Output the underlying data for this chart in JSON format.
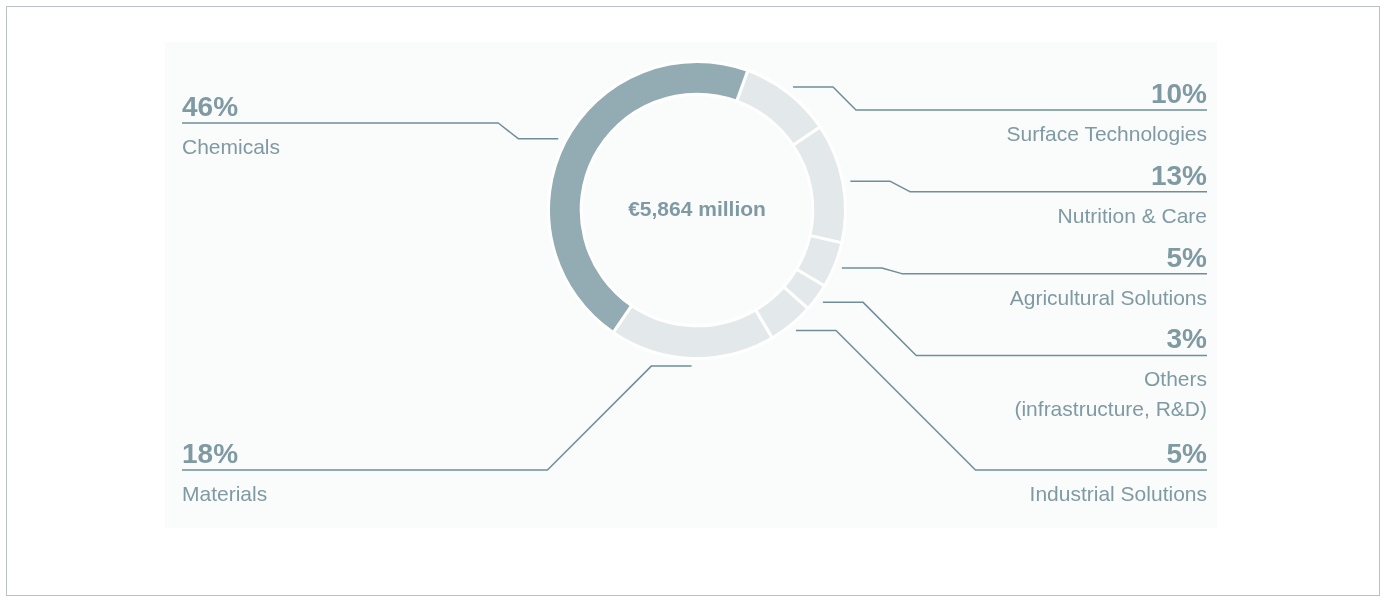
{
  "chart_data": {
    "type": "donut",
    "categories": [
      "Surface Technologies",
      "Nutrition & Care",
      "Agricultural Solutions",
      "Others\n(infrastructure, R&D)",
      "Industrial Solutions",
      "Materials",
      "Chemicals"
    ],
    "values": [
      10,
      13,
      5,
      3,
      5,
      18,
      46
    ],
    "colors": [
      "#e3e8ea",
      "#e3e8ea",
      "#e3e8ea",
      "#e3e8ea",
      "#e3e8ea",
      "#e3e8ea",
      "#93abb2"
    ],
    "value_labels": [
      "10%",
      "13%",
      "5%",
      "3%",
      "5%",
      "18%",
      "46%"
    ],
    "annotations": [
      "€5,864 million"
    ]
  }
}
